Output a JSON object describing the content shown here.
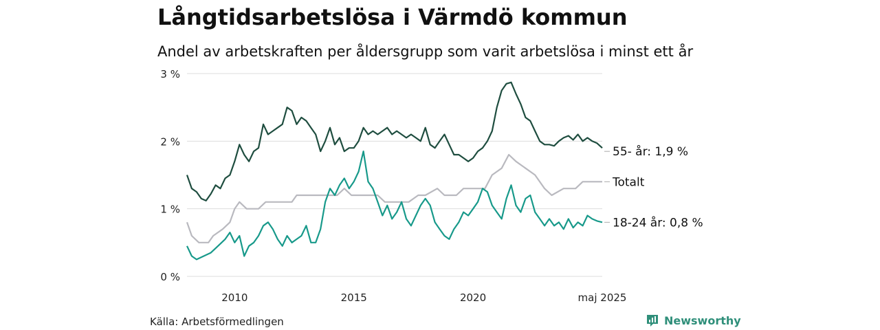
{
  "title": "Långtidsarbetslösa i Värmdö kommun",
  "subtitle": "Andel av arbetskraften per åldersgrupp som varit arbetslösa i minst ett år",
  "source": "Källa: Arbetsförmedlingen",
  "brand": "Newsworthy",
  "colors": {
    "older": "#1e4d3f",
    "young": "#17998a",
    "total": "#b9b9bf",
    "grid": "#dddddd",
    "brand": "#2f8f7a"
  },
  "chart_data": {
    "type": "line",
    "title": "Långtidsarbetslösa i Värmdö kommun",
    "subtitle": "Andel av arbetskraften per åldersgrupp som varit arbetslösa i minst ett år",
    "ylim": [
      0,
      3
    ],
    "yticks": [
      0,
      1,
      2,
      3
    ],
    "ytick_labels": [
      "0 %",
      "1 %",
      "2 %",
      "3 %"
    ],
    "xlim": [
      2008.0,
      2025.42
    ],
    "xticks": [
      2010,
      2015,
      2020,
      2025.42
    ],
    "xtick_labels": [
      "2010",
      "2015",
      "2020",
      "maj 2025"
    ],
    "grid": true,
    "legend": "direct labels at line ends",
    "series": [
      {
        "name": "55- år",
        "end_label": "55- år: 1,9 %",
        "color": "#1e4d3f",
        "points": [
          [
            2008.0,
            1.5
          ],
          [
            2008.2,
            1.3
          ],
          [
            2008.4,
            1.25
          ],
          [
            2008.6,
            1.15
          ],
          [
            2008.8,
            1.12
          ],
          [
            2009.0,
            1.22
          ],
          [
            2009.2,
            1.35
          ],
          [
            2009.4,
            1.3
          ],
          [
            2009.6,
            1.45
          ],
          [
            2009.8,
            1.5
          ],
          [
            2010.0,
            1.7
          ],
          [
            2010.2,
            1.95
          ],
          [
            2010.4,
            1.8
          ],
          [
            2010.6,
            1.7
          ],
          [
            2010.8,
            1.85
          ],
          [
            2011.0,
            1.9
          ],
          [
            2011.2,
            2.25
          ],
          [
            2011.4,
            2.1
          ],
          [
            2011.6,
            2.15
          ],
          [
            2011.8,
            2.2
          ],
          [
            2012.0,
            2.25
          ],
          [
            2012.2,
            2.5
          ],
          [
            2012.4,
            2.45
          ],
          [
            2012.6,
            2.25
          ],
          [
            2012.8,
            2.35
          ],
          [
            2013.0,
            2.3
          ],
          [
            2013.2,
            2.2
          ],
          [
            2013.4,
            2.1
          ],
          [
            2013.6,
            1.85
          ],
          [
            2013.8,
            2.0
          ],
          [
            2014.0,
            2.2
          ],
          [
            2014.2,
            1.95
          ],
          [
            2014.4,
            2.05
          ],
          [
            2014.6,
            1.85
          ],
          [
            2014.8,
            1.9
          ],
          [
            2015.0,
            1.9
          ],
          [
            2015.2,
            2.0
          ],
          [
            2015.4,
            2.2
          ],
          [
            2015.6,
            2.1
          ],
          [
            2015.8,
            2.15
          ],
          [
            2016.0,
            2.1
          ],
          [
            2016.2,
            2.15
          ],
          [
            2016.4,
            2.2
          ],
          [
            2016.6,
            2.1
          ],
          [
            2016.8,
            2.15
          ],
          [
            2017.0,
            2.1
          ],
          [
            2017.2,
            2.05
          ],
          [
            2017.4,
            2.1
          ],
          [
            2017.6,
            2.05
          ],
          [
            2017.8,
            2.0
          ],
          [
            2018.0,
            2.2
          ],
          [
            2018.2,
            1.95
          ],
          [
            2018.4,
            1.9
          ],
          [
            2018.6,
            2.0
          ],
          [
            2018.8,
            2.1
          ],
          [
            2019.0,
            1.95
          ],
          [
            2019.2,
            1.8
          ],
          [
            2019.4,
            1.8
          ],
          [
            2019.6,
            1.75
          ],
          [
            2019.8,
            1.7
          ],
          [
            2020.0,
            1.75
          ],
          [
            2020.2,
            1.85
          ],
          [
            2020.4,
            1.9
          ],
          [
            2020.6,
            2.0
          ],
          [
            2020.8,
            2.15
          ],
          [
            2021.0,
            2.5
          ],
          [
            2021.2,
            2.75
          ],
          [
            2021.4,
            2.85
          ],
          [
            2021.6,
            2.87
          ],
          [
            2021.8,
            2.7
          ],
          [
            2022.0,
            2.55
          ],
          [
            2022.2,
            2.35
          ],
          [
            2022.4,
            2.3
          ],
          [
            2022.6,
            2.15
          ],
          [
            2022.8,
            2.0
          ],
          [
            2023.0,
            1.95
          ],
          [
            2023.2,
            1.95
          ],
          [
            2023.4,
            1.93
          ],
          [
            2023.6,
            2.0
          ],
          [
            2023.8,
            2.05
          ],
          [
            2024.0,
            2.08
          ],
          [
            2024.2,
            2.02
          ],
          [
            2024.4,
            2.1
          ],
          [
            2024.6,
            2.0
          ],
          [
            2024.8,
            2.05
          ],
          [
            2025.0,
            2.0
          ],
          [
            2025.2,
            1.97
          ],
          [
            2025.42,
            1.9
          ]
        ]
      },
      {
        "name": "Totalt",
        "end_label": "Totalt",
        "color": "#b9b9bf",
        "points": [
          [
            2008.0,
            0.8
          ],
          [
            2008.2,
            0.6
          ],
          [
            2008.5,
            0.5
          ],
          [
            2008.9,
            0.5
          ],
          [
            2009.1,
            0.6
          ],
          [
            2009.5,
            0.7
          ],
          [
            2009.8,
            0.8
          ],
          [
            2010.0,
            1.0
          ],
          [
            2010.2,
            1.1
          ],
          [
            2010.5,
            1.0
          ],
          [
            2011.0,
            1.0
          ],
          [
            2011.3,
            1.1
          ],
          [
            2012.0,
            1.1
          ],
          [
            2012.4,
            1.1
          ],
          [
            2012.6,
            1.2
          ],
          [
            2013.2,
            1.2
          ],
          [
            2013.6,
            1.2
          ],
          [
            2014.0,
            1.2
          ],
          [
            2014.3,
            1.2
          ],
          [
            2014.6,
            1.3
          ],
          [
            2014.9,
            1.2
          ],
          [
            2015.2,
            1.2
          ],
          [
            2015.5,
            1.2
          ],
          [
            2015.8,
            1.2
          ],
          [
            2016.0,
            1.2
          ],
          [
            2016.3,
            1.1
          ],
          [
            2016.8,
            1.1
          ],
          [
            2017.3,
            1.1
          ],
          [
            2017.7,
            1.2
          ],
          [
            2018.0,
            1.2
          ],
          [
            2018.5,
            1.3
          ],
          [
            2018.8,
            1.2
          ],
          [
            2019.3,
            1.2
          ],
          [
            2019.6,
            1.3
          ],
          [
            2020.2,
            1.3
          ],
          [
            2020.5,
            1.3
          ],
          [
            2020.8,
            1.5
          ],
          [
            2021.2,
            1.6
          ],
          [
            2021.5,
            1.8
          ],
          [
            2021.8,
            1.7
          ],
          [
            2022.2,
            1.6
          ],
          [
            2022.6,
            1.5
          ],
          [
            2023.0,
            1.3
          ],
          [
            2023.3,
            1.2
          ],
          [
            2023.8,
            1.3
          ],
          [
            2024.3,
            1.3
          ],
          [
            2024.6,
            1.4
          ],
          [
            2025.0,
            1.4
          ],
          [
            2025.42,
            1.4
          ]
        ]
      },
      {
        "name": "18-24 år",
        "end_label": "18-24 år: 0,8 %",
        "color": "#17998a",
        "points": [
          [
            2008.0,
            0.45
          ],
          [
            2008.2,
            0.3
          ],
          [
            2008.4,
            0.25
          ],
          [
            2008.7,
            0.3
          ],
          [
            2009.0,
            0.35
          ],
          [
            2009.3,
            0.45
          ],
          [
            2009.6,
            0.55
          ],
          [
            2009.8,
            0.65
          ],
          [
            2010.0,
            0.5
          ],
          [
            2010.2,
            0.6
          ],
          [
            2010.4,
            0.3
          ],
          [
            2010.6,
            0.45
          ],
          [
            2010.8,
            0.5
          ],
          [
            2011.0,
            0.6
          ],
          [
            2011.2,
            0.75
          ],
          [
            2011.4,
            0.8
          ],
          [
            2011.6,
            0.7
          ],
          [
            2011.8,
            0.55
          ],
          [
            2012.0,
            0.45
          ],
          [
            2012.2,
            0.6
          ],
          [
            2012.4,
            0.5
          ],
          [
            2012.6,
            0.55
          ],
          [
            2012.8,
            0.6
          ],
          [
            2013.0,
            0.75
          ],
          [
            2013.2,
            0.5
          ],
          [
            2013.4,
            0.5
          ],
          [
            2013.6,
            0.7
          ],
          [
            2013.8,
            1.1
          ],
          [
            2014.0,
            1.3
          ],
          [
            2014.2,
            1.2
          ],
          [
            2014.4,
            1.35
          ],
          [
            2014.6,
            1.45
          ],
          [
            2014.8,
            1.3
          ],
          [
            2015.0,
            1.4
          ],
          [
            2015.2,
            1.55
          ],
          [
            2015.4,
            1.85
          ],
          [
            2015.6,
            1.4
          ],
          [
            2015.8,
            1.3
          ],
          [
            2016.0,
            1.1
          ],
          [
            2016.2,
            0.9
          ],
          [
            2016.4,
            1.05
          ],
          [
            2016.6,
            0.85
          ],
          [
            2016.8,
            0.95
          ],
          [
            2017.0,
            1.1
          ],
          [
            2017.2,
            0.85
          ],
          [
            2017.4,
            0.75
          ],
          [
            2017.6,
            0.9
          ],
          [
            2017.8,
            1.05
          ],
          [
            2018.0,
            1.15
          ],
          [
            2018.2,
            1.05
          ],
          [
            2018.4,
            0.8
          ],
          [
            2018.6,
            0.7
          ],
          [
            2018.8,
            0.6
          ],
          [
            2019.0,
            0.55
          ],
          [
            2019.2,
            0.7
          ],
          [
            2019.4,
            0.8
          ],
          [
            2019.6,
            0.95
          ],
          [
            2019.8,
            0.9
          ],
          [
            2020.0,
            1.0
          ],
          [
            2020.2,
            1.1
          ],
          [
            2020.4,
            1.3
          ],
          [
            2020.6,
            1.25
          ],
          [
            2020.8,
            1.05
          ],
          [
            2021.0,
            0.95
          ],
          [
            2021.2,
            0.85
          ],
          [
            2021.4,
            1.15
          ],
          [
            2021.6,
            1.35
          ],
          [
            2021.8,
            1.05
          ],
          [
            2022.0,
            0.95
          ],
          [
            2022.2,
            1.15
          ],
          [
            2022.4,
            1.2
          ],
          [
            2022.6,
            0.95
          ],
          [
            2022.8,
            0.85
          ],
          [
            2023.0,
            0.75
          ],
          [
            2023.2,
            0.85
          ],
          [
            2023.4,
            0.75
          ],
          [
            2023.6,
            0.8
          ],
          [
            2023.8,
            0.7
          ],
          [
            2024.0,
            0.85
          ],
          [
            2024.2,
            0.72
          ],
          [
            2024.4,
            0.8
          ],
          [
            2024.6,
            0.75
          ],
          [
            2024.8,
            0.9
          ],
          [
            2025.0,
            0.85
          ],
          [
            2025.2,
            0.82
          ],
          [
            2025.42,
            0.8
          ]
        ]
      }
    ]
  }
}
